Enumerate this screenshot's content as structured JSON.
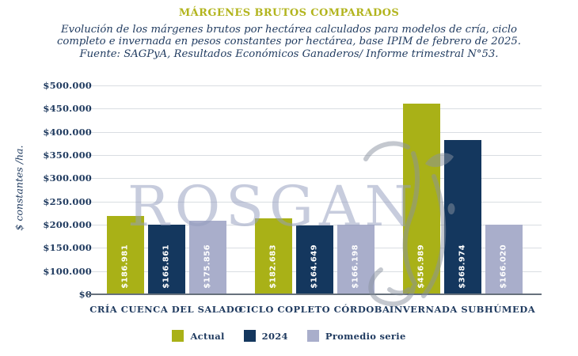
{
  "title": "MÁRGENES BRUTOS COMPARADOS",
  "subtitle_lines": [
    "Evolución de los márgenes brutos por hectárea calculados para modelos de cría, ciclo",
    "completo e invernada en pesos constantes por hectárea, base IPIM de febrero de 2025.",
    "Fuente: SAGPyA, Resultados Económicos Ganaderos/ Informe trimestral N°53."
  ],
  "watermark": {
    "text": "ROSGAN"
  },
  "colors": {
    "title_text": "#b2b41d",
    "navy_text": "#1f3a5f",
    "gridline": "#d9dde2",
    "baseline": "#67717c",
    "actual": "#a9b117",
    "y2024": "#14375e",
    "promedio": "#a9aecb",
    "watermark": "#b9bfd3",
    "bar_value_text": "#ffffff"
  },
  "chart_data": {
    "type": "bar",
    "title": "MÁRGENES BRUTOS COMPARADOS",
    "xlabel": "",
    "ylabel": "$ constantes /ha.",
    "ylim": [
      0,
      500000
    ],
    "grid": true,
    "legend_position": "bottom",
    "categories": [
      "CRÍA CUENCA DEL SALADO",
      "CICLO COPLETO CÓRDOBA",
      "INVERNADA SUBHÚMEDA"
    ],
    "series": [
      {
        "name": "Actual",
        "color": "#a9b117",
        "values": [
          186981,
          182683,
          456989
        ],
        "value_labels": [
          "$186.981",
          "$182.683",
          "$456.989"
        ]
      },
      {
        "name": "2024",
        "color": "#14375e",
        "values": [
          166861,
          164649,
          368974
        ],
        "value_labels": [
          "$166.861",
          "$164.649",
          "$368.974"
        ]
      },
      {
        "name": "Promedio serie",
        "color": "#a9aecb",
        "values": [
          175856,
          166198,
          166020
        ],
        "value_labels": [
          "$175.856",
          "$166.198",
          "$166.020"
        ]
      }
    ],
    "ytick_labels": [
      "$500.000",
      "$450.000",
      "$400.000",
      "$350.000",
      "$300.000",
      "$250.000",
      "$200.000",
      "$150.000",
      "$100.000",
      "$0"
    ]
  }
}
